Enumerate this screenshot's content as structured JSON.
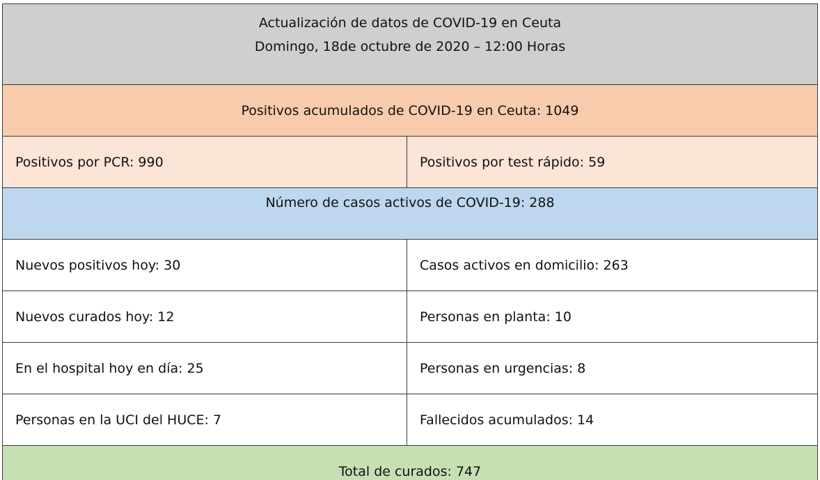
{
  "header": {
    "title": "Actualización de datos de COVID-19 en Ceuta",
    "date": "Domingo, 18de octubre de 2020 – 12:00 Horas",
    "bg": "#d0cece"
  },
  "accumulated": {
    "text": "Positivos acumulados  de COVID-19 en Ceuta:  1049",
    "bg": "#f8cbad"
  },
  "positives_split": {
    "pcr": "Positivos por PCR:  990",
    "rapid": "Positivos por test rápido:  59",
    "bg": "#fce4d6"
  },
  "active": {
    "text": "Número de casos activos de COVID-19:   288",
    "bg": "#bdd7ee"
  },
  "detail_rows": [
    {
      "left": "Nuevos positivos hoy: 30",
      "right": "Casos activos en domicilio:  263"
    },
    {
      "left": "Nuevos curados  hoy: 12",
      "right": "Personas en planta: 10"
    },
    {
      "left": "En el hospital  hoy en día: 25",
      "right": "Personas en urgencias: 8"
    },
    {
      "left": "Personas en la UCI del HUCE: 7",
      "right": "Fallecidos acumulados:  14"
    }
  ],
  "recovered": {
    "text": "Total de curados: 747",
    "bg": "#c6e0b4"
  }
}
